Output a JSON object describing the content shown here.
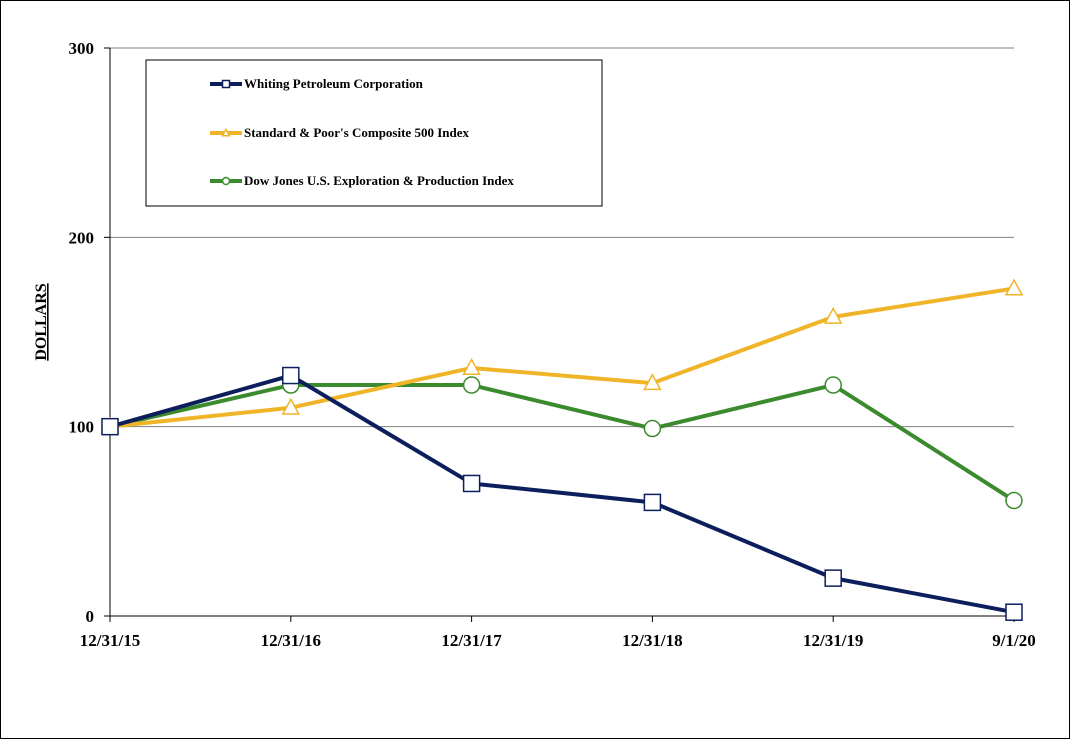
{
  "chart_data": {
    "type": "line",
    "ylabel": "DOLLARS",
    "xlabel": "",
    "categories": [
      "12/31/15",
      "12/31/16",
      "12/31/17",
      "12/31/18",
      "12/31/19",
      "9/1/20"
    ],
    "ylim": [
      0,
      300
    ],
    "yticks": [
      0,
      100,
      200,
      300
    ],
    "grid": true,
    "legend_position": "top-left",
    "series": [
      {
        "name": "Whiting Petroleum Corporation",
        "color": "#0d1e5c",
        "marker": "square",
        "values": [
          100,
          127,
          70,
          60,
          20,
          2
        ]
      },
      {
        "name": "Standard & Poor's Composite 500 Index",
        "color": "#f0b429",
        "marker": "triangle",
        "values": [
          100,
          110,
          131,
          123,
          158,
          173
        ]
      },
      {
        "name": "Dow Jones U.S. Exploration & Production Index",
        "color": "#3c8a2e",
        "marker": "circle",
        "values": [
          100,
          122,
          122,
          99,
          122,
          61
        ]
      }
    ]
  }
}
